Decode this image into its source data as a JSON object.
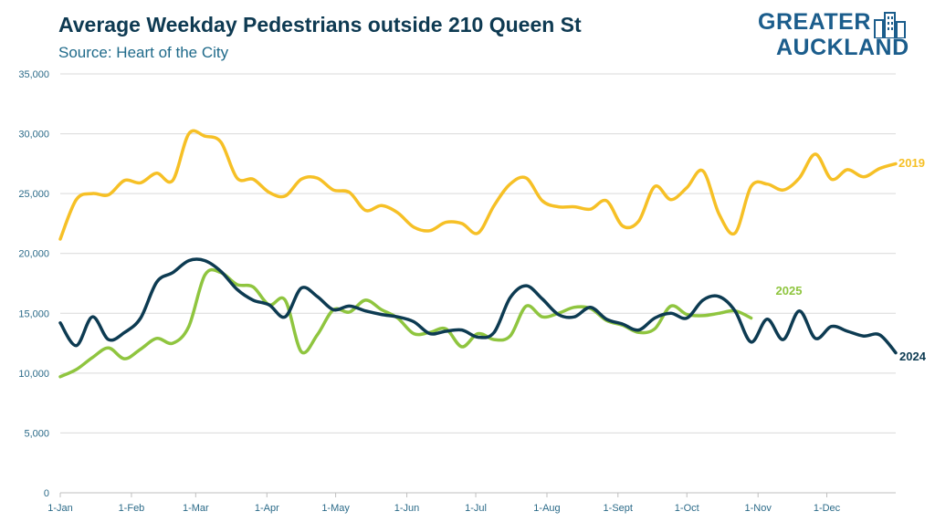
{
  "header": {
    "title": "Average Weekday Pedestrians outside 210 Queen St",
    "subtitle": "Source: Heart of the City"
  },
  "logo": {
    "line1": "GREATER",
    "line2": "AUCKLAND"
  },
  "chart_data": {
    "type": "line",
    "title": "Average Weekday Pedestrians outside 210 Queen St",
    "subtitle": "Source: Heart of the City",
    "xlabel": "",
    "ylabel": "",
    "ylim": [
      0,
      35000
    ],
    "xlim": [
      0,
      52
    ],
    "yticks": [
      0,
      5000,
      10000,
      15000,
      20000,
      25000,
      30000,
      35000
    ],
    "ytick_labels": [
      "0",
      "5,000",
      "10,000",
      "15,000",
      "20,000",
      "25,000",
      "30,000",
      "35,000"
    ],
    "xticks": [
      0,
      4.43,
      8.43,
      12.86,
      17.14,
      21.57,
      25.86,
      30.29,
      34.71,
      39,
      43.43,
      47.71
    ],
    "xtick_labels": [
      "1-Jan",
      "1-Feb",
      "1-Mar",
      "1-Apr",
      "1-May",
      "1-Jun",
      "1-Jul",
      "1-Aug",
      "1-Sept",
      "1-Oct",
      "1-Nov",
      "1-Dec"
    ],
    "grid": "horizontal",
    "series": [
      {
        "name": "2019",
        "color": "#f6c026",
        "x": [
          0,
          1,
          2,
          3,
          4,
          5,
          6,
          7,
          8,
          9,
          10,
          11,
          12,
          13,
          14,
          15,
          16,
          17,
          18,
          19,
          20,
          21,
          22,
          23,
          24,
          25,
          26,
          27,
          28,
          29,
          30,
          31,
          32,
          33,
          34,
          35,
          36,
          37,
          38,
          39,
          40,
          41,
          42,
          43,
          44,
          45,
          46,
          47,
          48,
          49,
          50,
          51,
          52
        ],
        "values": [
          21200,
          24500,
          25000,
          24900,
          26100,
          25900,
          26700,
          26100,
          30000,
          29800,
          29300,
          26300,
          26200,
          25100,
          24800,
          26200,
          26300,
          25300,
          25100,
          23600,
          24000,
          23400,
          22200,
          21900,
          22600,
          22500,
          21700,
          24000,
          25800,
          26300,
          24400,
          23900,
          23900,
          23700,
          24400,
          22300,
          22700,
          25600,
          24500,
          25500,
          26900,
          23300,
          21700,
          25600,
          25800,
          25300,
          26300,
          28300,
          26200,
          27000,
          26400,
          27100,
          27500
        ]
      },
      {
        "name": "2024",
        "color": "#0d3b52",
        "x": [
          0,
          1,
          2,
          3,
          4,
          5,
          6,
          7,
          8,
          9,
          10,
          11,
          12,
          13,
          14,
          15,
          16,
          17,
          18,
          19,
          20,
          21,
          22,
          23,
          24,
          25,
          26,
          27,
          28,
          29,
          30,
          31,
          32,
          33,
          34,
          35,
          36,
          37,
          38,
          39,
          40,
          41,
          42,
          43,
          44,
          45,
          46,
          47,
          48,
          49,
          50,
          51,
          52
        ],
        "values": [
          14200,
          12300,
          14700,
          12800,
          13400,
          14600,
          17600,
          18400,
          19400,
          19400,
          18500,
          17000,
          16100,
          15700,
          14700,
          17100,
          16400,
          15300,
          15600,
          15200,
          14900,
          14700,
          14300,
          13300,
          13500,
          13600,
          13000,
          13400,
          16300,
          17300,
          16200,
          14900,
          14700,
          15500,
          14500,
          14100,
          13600,
          14600,
          15000,
          14600,
          16100,
          16400,
          15200,
          12600,
          14500,
          12800,
          15200,
          12900,
          13900,
          13500,
          13100,
          13200,
          11700
        ]
      },
      {
        "name": "2025",
        "color": "#8fc53f",
        "x": [
          0,
          1,
          2,
          3,
          4,
          5,
          6,
          7,
          8,
          9,
          10,
          11,
          12,
          13,
          14,
          15,
          16,
          17,
          18,
          19,
          20,
          21,
          22,
          23,
          24,
          25,
          26,
          27,
          28,
          29,
          30,
          31,
          32,
          33,
          34,
          35,
          36,
          37,
          38,
          39,
          40,
          41,
          42,
          43,
          44
        ],
        "values": [
          9700,
          10300,
          11300,
          12100,
          11200,
          12000,
          12900,
          12500,
          13900,
          18200,
          18400,
          17400,
          17200,
          15700,
          16100,
          11800,
          13200,
          15300,
          15100,
          16100,
          15300,
          14600,
          13300,
          13400,
          13700,
          12200,
          13300,
          12800,
          13100,
          15600,
          14700,
          15000,
          15500,
          15400,
          14400,
          14000,
          13400,
          13700,
          15600,
          14900,
          14800,
          15000,
          15200,
          14600,
          null
        ]
      }
    ]
  }
}
